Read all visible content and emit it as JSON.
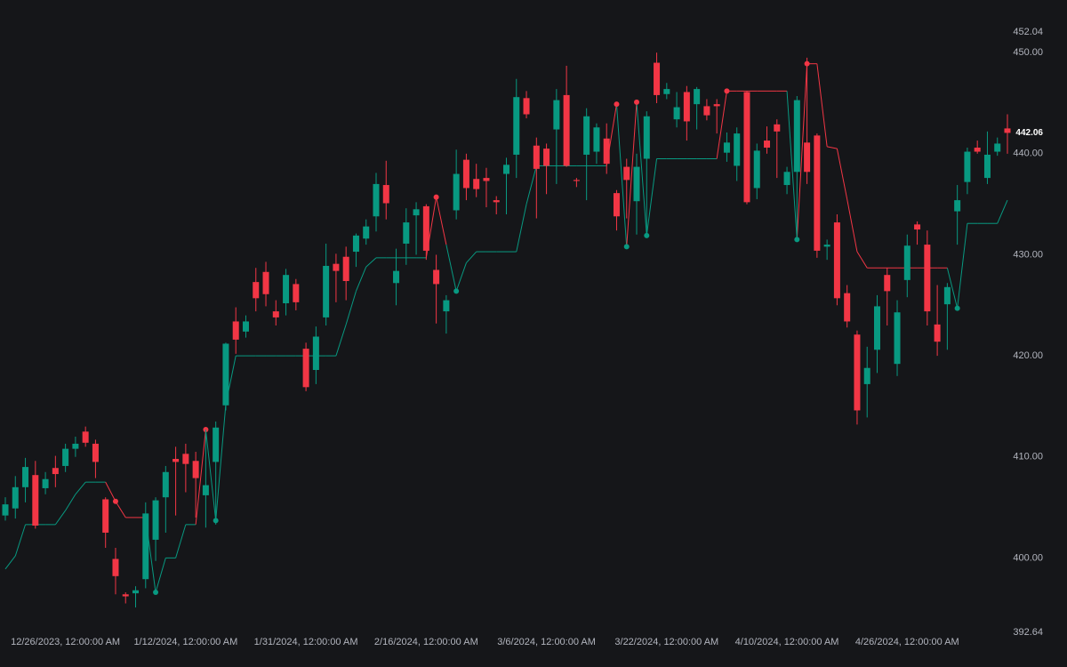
{
  "chart_data": {
    "type": "candlestick",
    "categories": [
      null,
      null,
      null,
      null,
      null,
      null,
      "12/26/2023, 12:00:00 AM",
      null,
      null,
      null,
      null,
      null,
      null,
      null,
      null,
      null,
      null,
      null,
      "1/12/2024, 12:00:00 AM",
      null,
      null,
      null,
      null,
      null,
      null,
      null,
      null,
      null,
      null,
      null,
      "1/31/2024, 12:00:00 AM",
      null,
      null,
      null,
      null,
      null,
      null,
      null,
      null,
      null,
      null,
      null,
      "2/16/2024, 12:00:00 AM",
      null,
      null,
      null,
      null,
      null,
      null,
      null,
      null,
      null,
      null,
      null,
      "3/6/2024, 12:00:00 AM",
      null,
      null,
      null,
      null,
      null,
      null,
      null,
      null,
      null,
      null,
      null,
      "3/22/2024, 12:00:00 AM",
      null,
      null,
      null,
      null,
      null,
      null,
      null,
      null,
      null,
      null,
      null,
      "4/10/2024, 12:00:00 AM",
      null,
      null,
      null,
      null,
      null,
      null,
      null,
      null,
      null,
      null,
      null,
      "4/26/2024, 12:00:00 AM",
      null,
      null,
      null,
      null,
      null,
      null,
      null,
      null,
      null,
      null
    ],
    "open": [
      404.2,
      404.9,
      407.0,
      408.2,
      406.9,
      408.9,
      409.1,
      410.8,
      412.5,
      411.3,
      405.8,
      399.9,
      396.4,
      396.5,
      397.9,
      401.8,
      406.0,
      409.8,
      410.3,
      409.6,
      406.2,
      409.5,
      415.1,
      423.4,
      422.4,
      427.3,
      428.3,
      424.4,
      425.2,
      427.1,
      420.7,
      418.6,
      423.8,
      429.1,
      429.8,
      430.3,
      431.6,
      433.8,
      436.9,
      427.2,
      431.1,
      433.9,
      434.8,
      428.5,
      424.4,
      434.4,
      439.4,
      437.5,
      437.6,
      435.4,
      438.0,
      439.9,
      445.5,
      440.8,
      440.5,
      442.4,
      445.8,
      437.4,
      439.9,
      440.2,
      441.5,
      436.1,
      438.7,
      435.3,
      439.5,
      449.0,
      445.9,
      443.4,
      446.1,
      444.9,
      444.7,
      444.9,
      440.1,
      438.8,
      446.1,
      436.6,
      441.3,
      442.9,
      436.9,
      438.2,
      441.1,
      441.8,
      430.8,
      433.2,
      426.2,
      422.1,
      417.2,
      420.6,
      428.0,
      419.2,
      427.5,
      433.0,
      431.0,
      423.1,
      425.1,
      434.3,
      437.2,
      440.6,
      437.6,
      440.2,
      442.5
    ],
    "high": [
      406.0,
      408.1,
      409.9,
      409.6,
      408.5,
      410.1,
      411.3,
      412.0,
      413.0,
      411.7,
      406.0,
      401.0,
      396.6,
      397.2,
      405.5,
      406.0,
      409.1,
      411.0,
      411.3,
      410.5,
      412.7,
      413.5,
      421.3,
      424.8,
      424.0,
      428.7,
      429.3,
      425.5,
      428.6,
      427.6,
      421.3,
      422.9,
      431.1,
      430.1,
      430.8,
      432.1,
      433.5,
      438.1,
      439.3,
      430.6,
      434.6,
      435.2,
      435.0,
      430.0,
      426.0,
      440.4,
      440.0,
      439.0,
      438.6,
      435.8,
      439.6,
      447.4,
      446.2,
      441.6,
      441.0,
      446.4,
      448.7,
      437.6,
      444.5,
      443.0,
      443.0,
      436.4,
      439.5,
      440.0,
      444.2,
      450.0,
      447.0,
      446.1,
      446.7,
      446.6,
      445.4,
      445.4,
      442.1,
      442.6,
      446.2,
      441.0,
      442.7,
      443.4,
      438.7,
      445.7,
      449.5,
      442.0,
      431.5,
      434.0,
      427.0,
      422.5,
      420.9,
      426.0,
      428.7,
      425.5,
      432.0,
      433.3,
      432.4,
      427.0,
      427.2,
      436.9,
      440.6,
      441.3,
      442.2,
      441.6,
      443.9
    ],
    "low": [
      403.7,
      403.9,
      405.5,
      402.9,
      406.3,
      407.0,
      408.5,
      410.0,
      411.0,
      407.9,
      401.0,
      396.4,
      395.5,
      395.1,
      397.0,
      399.7,
      402.5,
      404.2,
      406.5,
      404.0,
      403.0,
      403.3,
      414.6,
      420.2,
      421.8,
      424.4,
      424.9,
      423.0,
      424.0,
      424.5,
      416.5,
      417.2,
      423.0,
      425.3,
      425.5,
      428.8,
      431.0,
      432.3,
      433.5,
      425.0,
      429.0,
      430.0,
      429.5,
      423.2,
      422.2,
      433.5,
      435.4,
      435.7,
      434.7,
      434.0,
      434.0,
      437.6,
      443.5,
      433.6,
      436.0,
      437.0,
      438.7,
      436.7,
      435.4,
      439.0,
      438.0,
      432.4,
      433.6,
      432.0,
      431.8,
      445.0,
      445.4,
      442.6,
      441.3,
      442.4,
      443.3,
      442.0,
      439.2,
      437.3,
      435.0,
      435.5,
      440.0,
      437.6,
      436.0,
      431.5,
      437.0,
      429.7,
      429.5,
      425.0,
      422.8,
      413.2,
      413.9,
      418.3,
      423.0,
      418.0,
      425.8,
      431.0,
      423.0,
      420.0,
      420.6,
      431.0,
      436.0,
      440.0,
      437.0,
      439.8,
      440.0
    ],
    "close": [
      405.3,
      407.0,
      409.0,
      403.2,
      407.8,
      408.3,
      410.8,
      411.3,
      411.4,
      409.5,
      402.5,
      398.2,
      396.2,
      396.8,
      404.4,
      405.7,
      408.5,
      409.5,
      409.3,
      407.9,
      407.2,
      412.9,
      421.2,
      421.6,
      423.4,
      425.7,
      426.1,
      423.8,
      428.0,
      425.3,
      416.9,
      421.9,
      428.9,
      428.4,
      427.4,
      431.9,
      432.8,
      437.0,
      435.1,
      428.4,
      433.2,
      434.5,
      430.4,
      427.1,
      425.5,
      438.0,
      436.6,
      436.5,
      437.3,
      435.2,
      438.9,
      445.6,
      443.9,
      438.5,
      438.8,
      445.3,
      438.8,
      437.3,
      443.7,
      442.6,
      439.0,
      433.8,
      437.4,
      438.7,
      443.7,
      445.8,
      446.4,
      444.6,
      443.2,
      446.4,
      443.8,
      444.7,
      441.1,
      442.0,
      435.2,
      440.3,
      440.6,
      442.2,
      438.2,
      445.3,
      438.2,
      430.4,
      431.0,
      425.7,
      423.4,
      414.6,
      418.8,
      424.9,
      426.4,
      424.3,
      430.9,
      432.5,
      424.4,
      421.4,
      426.8,
      435.4,
      440.2,
      440.2,
      439.9,
      441.0,
      442.06
    ],
    "up_color": "#089981",
    "down_color": "#f23645",
    "trail": {
      "values": [
        398.9,
        400.2,
        403.3,
        403.3,
        403.3,
        403.3,
        404.7,
        406.3,
        407.5,
        407.5,
        407.5,
        405.6,
        404.0,
        404.0,
        404.0,
        396.6,
        400.0,
        400.0,
        403.3,
        403.3,
        412.7,
        403.7,
        415.2,
        420.0,
        420.0,
        420.0,
        420.0,
        420.0,
        420.0,
        420.0,
        420.0,
        420.0,
        420.0,
        420.0,
        423.1,
        426.4,
        428.8,
        429.7,
        429.7,
        429.7,
        429.7,
        429.7,
        429.7,
        435.7,
        431.0,
        426.4,
        429.2,
        430.3,
        430.3,
        430.3,
        430.3,
        430.3,
        435.0,
        438.8,
        438.8,
        438.8,
        438.8,
        438.8,
        438.8,
        438.8,
        438.8,
        444.9,
        430.8,
        445.1,
        431.9,
        439.5,
        439.5,
        439.5,
        439.5,
        439.5,
        439.5,
        439.5,
        446.2,
        446.2,
        446.2,
        446.2,
        446.2,
        446.2,
        446.2,
        431.5,
        448.9,
        448.9,
        440.7,
        440.5,
        435.5,
        430.3,
        428.7,
        428.7,
        428.7,
        428.7,
        428.7,
        428.7,
        428.7,
        428.7,
        428.7,
        424.7,
        433.1,
        433.1,
        433.1,
        433.1,
        435.4
      ],
      "direction": [
        "up",
        "up",
        "up",
        "up",
        "up",
        "up",
        "up",
        "up",
        "up",
        "up",
        "up",
        "down",
        "down",
        "down",
        "down",
        "up",
        "up",
        "up",
        "up",
        "up",
        "down",
        "up",
        "up",
        "up",
        "up",
        "up",
        "up",
        "up",
        "up",
        "up",
        "up",
        "up",
        "up",
        "up",
        "up",
        "up",
        "up",
        "up",
        "up",
        "up",
        "up",
        "up",
        "up",
        "down",
        "down",
        "up",
        "up",
        "up",
        "up",
        "up",
        "up",
        "up",
        "up",
        "up",
        "up",
        "up",
        "up",
        "up",
        "up",
        "up",
        "up",
        "down",
        "up",
        "down",
        "up",
        "up",
        "up",
        "up",
        "up",
        "up",
        "up",
        "up",
        "down",
        "down",
        "down",
        "down",
        "down",
        "down",
        "down",
        "up",
        "down",
        "down",
        "down",
        "down",
        "down",
        "down",
        "down",
        "down",
        "down",
        "down",
        "down",
        "down",
        "down",
        "down",
        "down",
        "up",
        "up",
        "up",
        "up",
        "up",
        "up"
      ]
    },
    "ylim": [
      392.64,
      452.04
    ],
    "yticks": [
      392.64,
      {
        "value": 400,
        "label": "400.00"
      },
      {
        "value": 410,
        "label": "410.00"
      },
      {
        "value": 420,
        "label": "420.00"
      },
      {
        "value": 430,
        "label": "430.00"
      },
      {
        "value": 440,
        "label": "440.00"
      },
      {
        "value": 450,
        "label": "450.00"
      },
      452.04
    ],
    "last_label": {
      "value": 442.06,
      "label": "442.06"
    }
  }
}
